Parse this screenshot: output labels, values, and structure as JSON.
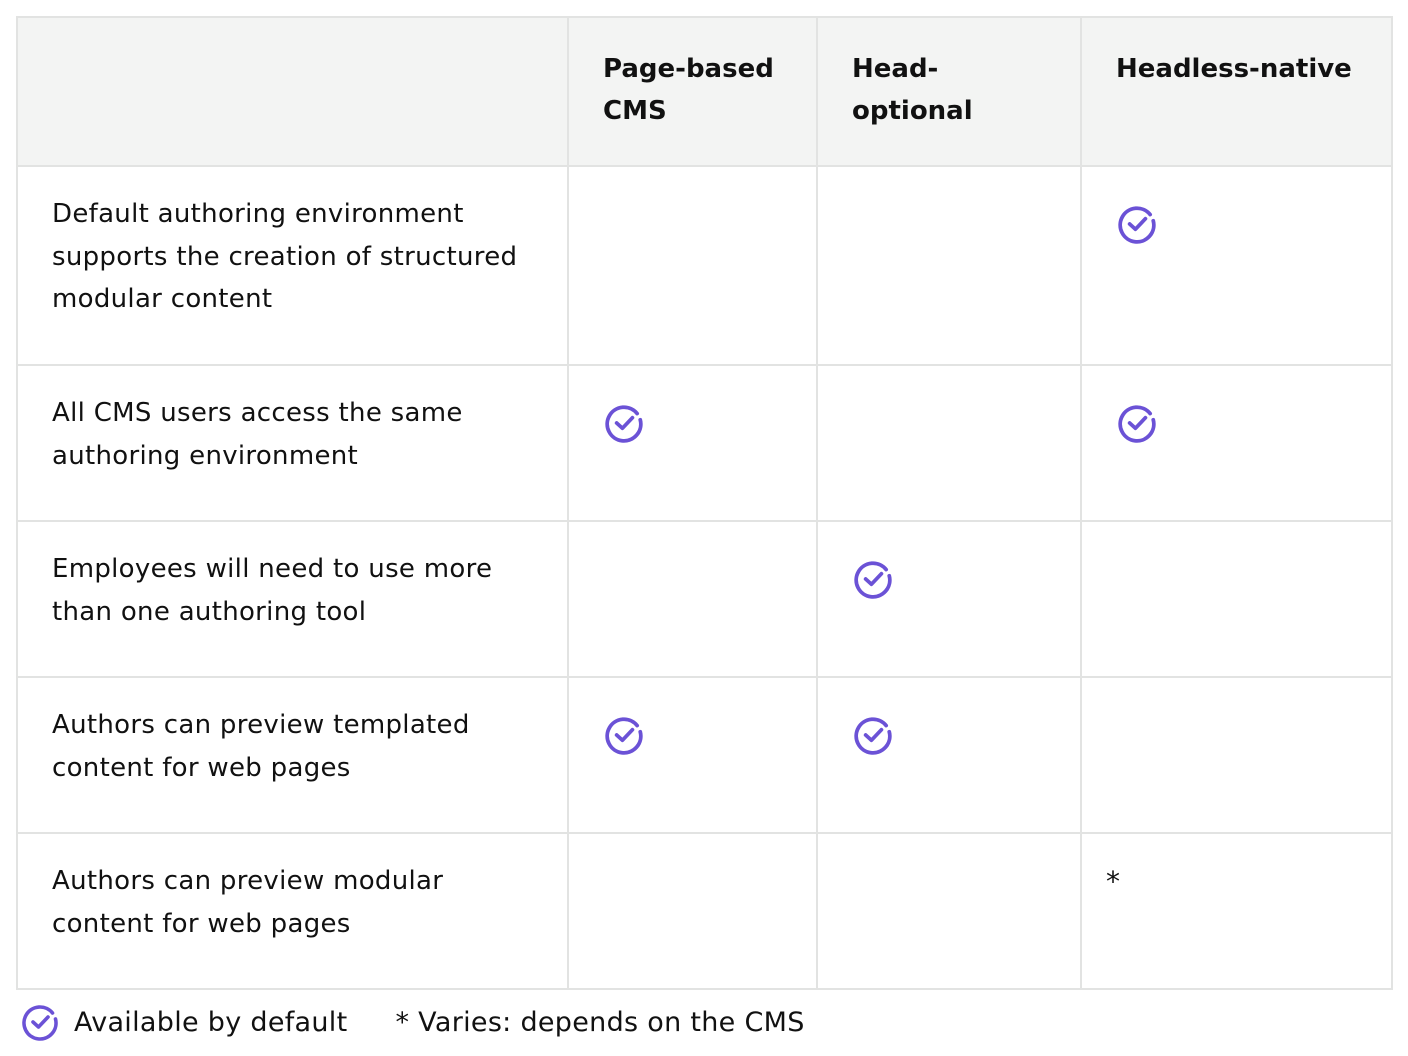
{
  "accent_color": "#6b52d6",
  "columns": [
    "",
    "Page-based CMS",
    "Head-optional",
    "Headless-native"
  ],
  "rows": [
    {
      "feature": "Default authoring environment supports the creation of structured modular content",
      "page_based": "",
      "head_optional": "",
      "headless_native": "check-icon"
    },
    {
      "feature": "All CMS users access the same authoring environment",
      "page_based": "check-icon",
      "head_optional": "",
      "headless_native": "check-icon"
    },
    {
      "feature": "Employees will need to use more than one authoring tool",
      "page_based": "",
      "head_optional": "check-icon",
      "headless_native": ""
    },
    {
      "feature": "Authors can preview templated content for web pages",
      "page_based": "check-icon",
      "head_optional": "check-icon",
      "headless_native": ""
    },
    {
      "feature": "Authors can preview modular content for web pages",
      "page_based": "",
      "head_optional": "",
      "headless_native": "*"
    }
  ],
  "legend": {
    "check_label": "Available by default",
    "note": "* Varies: depends on the CMS"
  }
}
